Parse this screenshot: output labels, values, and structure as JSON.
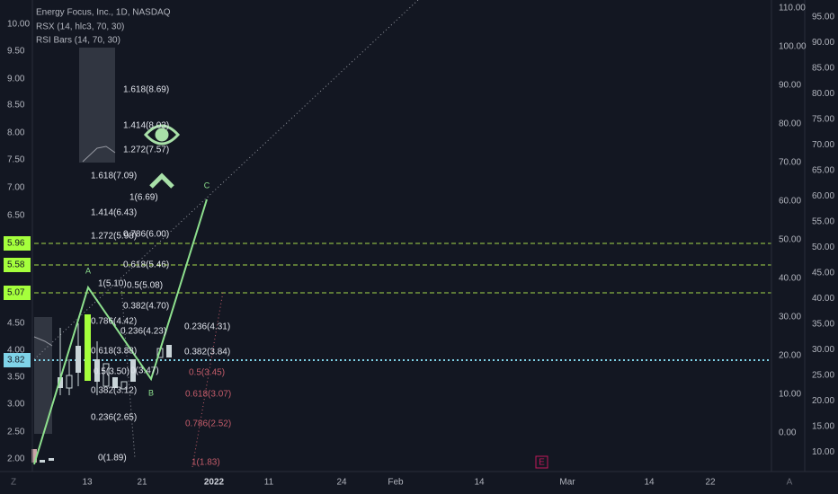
{
  "header": {
    "title": "Energy Focus, Inc., 1D, NASDAQ",
    "indicators": [
      "RSX (14, hlc3, 70, 30)",
      "RSI Bars (14, 70, 30)"
    ]
  },
  "price_axis": [
    "10.00",
    "9.50",
    "9.00",
    "8.50",
    "8.00",
    "7.50",
    "7.00",
    "6.50",
    "4.50",
    "4.00",
    "3.50",
    "3.00",
    "2.50",
    "2.00"
  ],
  "price_tags": [
    "5.96",
    "5.58",
    "5.07",
    "3.82"
  ],
  "rsx_axis": [
    "110.00",
    "100.00",
    "90.00",
    "80.00",
    "70.00",
    "60.00",
    "50.00",
    "40.00",
    "30.00",
    "20.00",
    "10.00",
    "0.00"
  ],
  "rsi_axis": [
    "95.00",
    "90.00",
    "85.00",
    "80.00",
    "75.00",
    "70.00",
    "65.00",
    "60.00",
    "55.00",
    "50.00",
    "45.00",
    "40.00",
    "35.00",
    "30.00",
    "25.00",
    "20.00",
    "15.00",
    "10.00"
  ],
  "time_axis": [
    "13",
    "21",
    "2022",
    "11",
    "24",
    "Feb",
    "14",
    "Mar",
    "14",
    "22"
  ],
  "fib_labels": [
    "1.618(8.69)",
    "1.414(8.03)",
    "1.272(7.57)",
    "1.618(7.09)",
    "1(6.69)",
    "1.414(6.43)",
    "1.272(5.98)",
    "0.786(6.00)",
    "0.618(5.46)",
    "1(5.10)",
    "0.5(5.08)",
    "0.382(4.70)",
    "0.786(4.42)",
    "0.236(4.23)",
    "0.236(4.31)",
    "0.618(3.88)",
    "0.382(3.84)",
    "0.5(3.50)",
    "0(3.47)",
    "0.5(3.45)",
    "0.382(3.12)",
    "0.618(3.07)",
    "0.236(2.65)",
    "0.786(2.52)",
    "0(1.89)",
    "1(1.83)"
  ],
  "wave_labels": [
    "A",
    "B",
    "C"
  ],
  "earnings_marker": "E",
  "corner_labels": [
    "Z",
    "A"
  ]
}
